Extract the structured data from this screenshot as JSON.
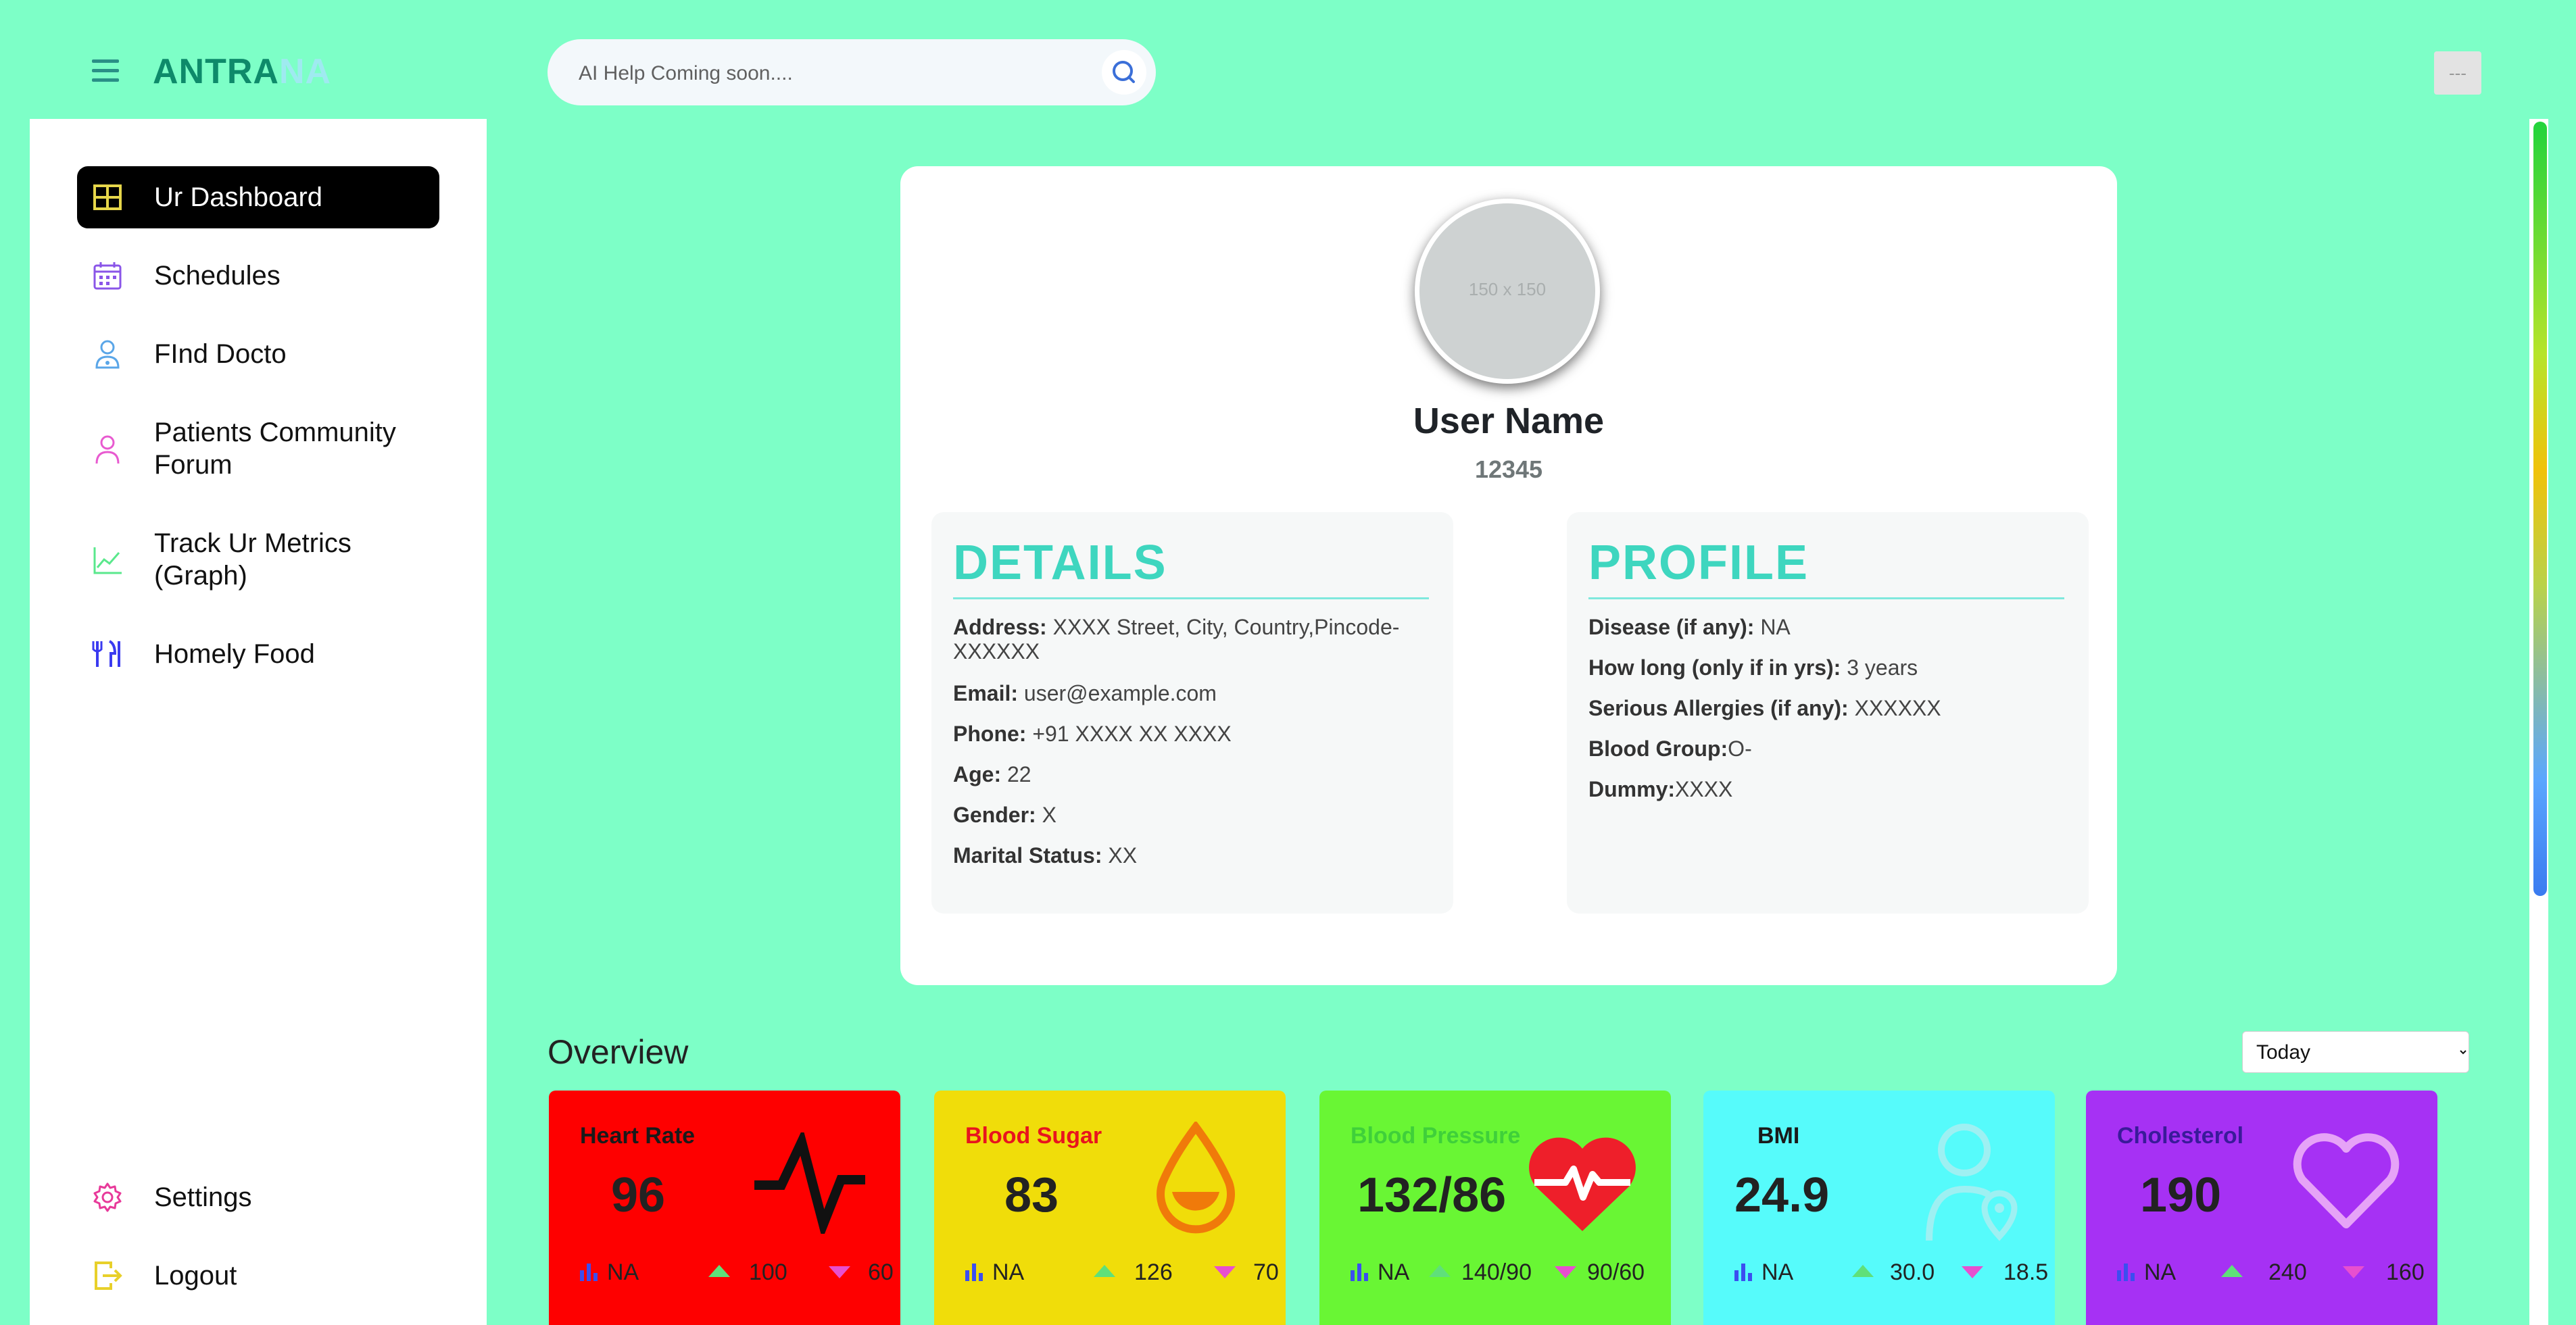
{
  "app": {
    "logo_part1": "ANTRA",
    "logo_part2": "NA"
  },
  "search": {
    "placeholder": "AI Help Coming soon...."
  },
  "top_right": {
    "label": "---"
  },
  "sidebar": {
    "items": [
      {
        "label": "Ur Dashboard",
        "icon": "dashboard-grid-icon",
        "active": true
      },
      {
        "label": "Schedules",
        "icon": "calendar-icon"
      },
      {
        "label": "FInd Docto",
        "icon": "doctor-icon"
      },
      {
        "label": "Patients Community Forum",
        "icon": "user-icon"
      },
      {
        "label": "Track Ur Metrics (Graph)",
        "icon": "line-chart-icon"
      },
      {
        "label": "Homely Food",
        "icon": "cutlery-icon"
      }
    ],
    "settings_label": "Settings",
    "logout_label": "Logout"
  },
  "profile": {
    "avatar_text": "150 x 150",
    "user_name": "User Name",
    "user_id": "12345",
    "details_title": "DETAILS",
    "details": [
      {
        "key": "Address:",
        "value": "XXXX Street, City, Country,Pincode-XXXXXX"
      },
      {
        "key": "Email:",
        "value": "user@example.com"
      },
      {
        "key": "Phone:",
        "value": "+91 XXXX XX XXXX"
      },
      {
        "key": "Age:",
        "value": "22"
      },
      {
        "key": "Gender:",
        "value": "X"
      },
      {
        "key": "Marital Status:",
        "value": "XX"
      }
    ],
    "profile_title": "PROFILE",
    "profile_items": [
      {
        "key": "Disease (if any):",
        "value": "NA"
      },
      {
        "key": "How long (only if in yrs):",
        "value": "3 years"
      },
      {
        "key": "Serious Allergies (if any):",
        "value": "XXXXXX"
      },
      {
        "key": "Blood Group:",
        "value": "O-"
      },
      {
        "key": "Dummy:",
        "value": "XXXX"
      }
    ]
  },
  "overview": {
    "title": "Overview",
    "period": "Today",
    "metrics": [
      {
        "name": "Heart Rate",
        "value": "96",
        "trend": "NA",
        "high": "100",
        "low": "60",
        "bg": "#fe0000",
        "name_color": "#1a1a1a",
        "icon": "pulse-icon"
      },
      {
        "name": "Blood Sugar",
        "value": "83",
        "trend": "NA",
        "high": "126",
        "low": "70",
        "bg": "#f0dd0a",
        "name_color": "#e8141e",
        "icon": "drop-icon"
      },
      {
        "name": "Blood Pressure",
        "value": "132/86",
        "trend": "NA",
        "high": "140/90",
        "low": "90/60",
        "bg": "#69f634",
        "name_color": "#3fd03a",
        "icon": "heart-pulse-icon"
      },
      {
        "name": "BMI",
        "value": "24.9",
        "trend": "NA",
        "high": "30.0",
        "low": "18.5",
        "bg": "#56fbfb",
        "name_color": "#1a1a1a",
        "icon": "person-pin-icon"
      },
      {
        "name": "Cholesterol",
        "value": "190",
        "trend": "NA",
        "high": "240",
        "low": "160",
        "bg": "#a631f4",
        "name_color": "#3a1a9a",
        "icon": "heart-outline-icon"
      }
    ]
  }
}
